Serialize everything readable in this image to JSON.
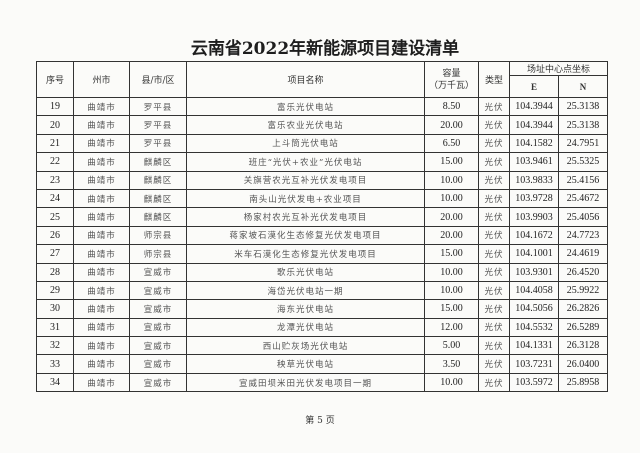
{
  "title": "云南省2022年新能源项目建设清单",
  "headers": {
    "seq": "序号",
    "prefecture": "州市",
    "county": "县/市/区",
    "project": "项目名称",
    "capacity": "容量\n（万千瓦）",
    "type": "类型",
    "coord_group": "场址中心点坐标",
    "e": "E",
    "n": "N"
  },
  "rows": [
    {
      "seq": "19",
      "prefecture": "曲靖市",
      "county": "罗平县",
      "project": "富乐光伏电站",
      "capacity": "8.50",
      "type": "光伏",
      "e": "104.3944",
      "n": "25.3138"
    },
    {
      "seq": "20",
      "prefecture": "曲靖市",
      "county": "罗平县",
      "project": "富乐农业光伏电站",
      "capacity": "20.00",
      "type": "光伏",
      "e": "104.3944",
      "n": "25.3138"
    },
    {
      "seq": "21",
      "prefecture": "曲靖市",
      "county": "罗平县",
      "project": "上斗筒光伏电站",
      "capacity": "6.50",
      "type": "光伏",
      "e": "104.1582",
      "n": "24.7951"
    },
    {
      "seq": "22",
      "prefecture": "曲靖市",
      "county": "麒麟区",
      "project": "班庄“光伏+农业”光伏电站",
      "capacity": "15.00",
      "type": "光伏",
      "e": "103.9461",
      "n": "25.5325"
    },
    {
      "seq": "23",
      "prefecture": "曲靖市",
      "county": "麒麟区",
      "project": "关旗营农光互补光伏发电项目",
      "capacity": "10.00",
      "type": "光伏",
      "e": "103.9833",
      "n": "25.4156"
    },
    {
      "seq": "24",
      "prefecture": "曲靖市",
      "county": "麒麟区",
      "project": "南头山光伏发电+农业项目",
      "capacity": "10.00",
      "type": "光伏",
      "e": "103.9728",
      "n": "25.4672"
    },
    {
      "seq": "25",
      "prefecture": "曲靖市",
      "county": "麒麟区",
      "project": "杨家村农光互补光伏发电项目",
      "capacity": "20.00",
      "type": "光伏",
      "e": "103.9903",
      "n": "25.4056"
    },
    {
      "seq": "26",
      "prefecture": "曲靖市",
      "county": "师宗县",
      "project": "蒋家坡石漠化生态修复光伏发电项目",
      "capacity": "20.00",
      "type": "光伏",
      "e": "104.1672",
      "n": "24.7723"
    },
    {
      "seq": "27",
      "prefecture": "曲靖市",
      "county": "师宗县",
      "project": "米车石漠化生态修复光伏发电项目",
      "capacity": "15.00",
      "type": "光伏",
      "e": "104.1001",
      "n": "24.4619"
    },
    {
      "seq": "28",
      "prefecture": "曲靖市",
      "county": "宣威市",
      "project": "歌乐光伏电站",
      "capacity": "10.00",
      "type": "光伏",
      "e": "103.9301",
      "n": "26.4520"
    },
    {
      "seq": "29",
      "prefecture": "曲靖市",
      "county": "宣威市",
      "project": "海岱光伏电站一期",
      "capacity": "10.00",
      "type": "光伏",
      "e": "104.4058",
      "n": "25.9922"
    },
    {
      "seq": "30",
      "prefecture": "曲靖市",
      "county": "宣威市",
      "project": "海东光伏电站",
      "capacity": "15.00",
      "type": "光伏",
      "e": "104.5056",
      "n": "26.2826"
    },
    {
      "seq": "31",
      "prefecture": "曲靖市",
      "county": "宣威市",
      "project": "龙潭光伏电站",
      "capacity": "12.00",
      "type": "光伏",
      "e": "104.5532",
      "n": "26.5289"
    },
    {
      "seq": "32",
      "prefecture": "曲靖市",
      "county": "宣威市",
      "project": "西山贮灰场光伏电站",
      "capacity": "5.00",
      "type": "光伏",
      "e": "104.1331",
      "n": "26.3128"
    },
    {
      "seq": "33",
      "prefecture": "曲靖市",
      "county": "宣威市",
      "project": "秧草光伏电站",
      "capacity": "3.50",
      "type": "光伏",
      "e": "103.7231",
      "n": "26.0400"
    },
    {
      "seq": "34",
      "prefecture": "曲靖市",
      "county": "宣威市",
      "project": "宣威田坝米田光伏发电项目一期",
      "capacity": "10.00",
      "type": "光伏",
      "e": "103.5972",
      "n": "25.8958"
    }
  ],
  "footer": "第 5 页"
}
